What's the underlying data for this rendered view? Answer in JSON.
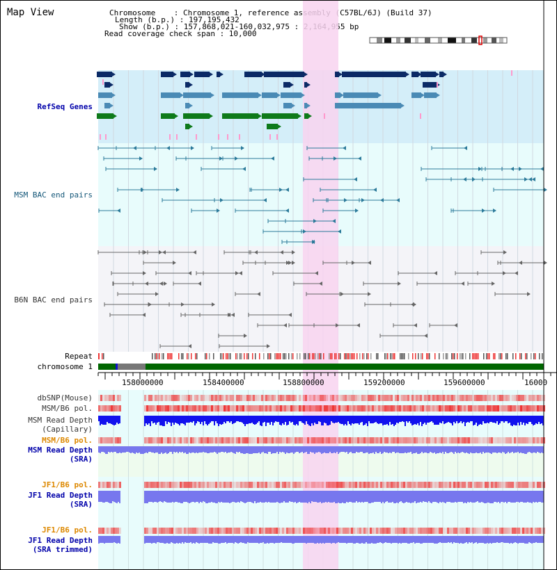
{
  "app": {
    "title": "Map View"
  },
  "info": {
    "chromosome": "Chromosome    : Chromosome 1, reference assembly (C57BL/6J) (Build 37)",
    "length": "Length (b.p.) : 197,195,432",
    "show": "Show (b.p.) : 157,868,021-160,032,975 : 2,164,955 bp",
    "coverage": "Read coverage check span : 10,000"
  },
  "tracks": {
    "refseq": "RefSeq Genes",
    "msm_bac": "MSM BAC end pairs",
    "b6n_bac": "B6N BAC end pairs",
    "repeat": "Repeat",
    "chromosome": "chromosome 1",
    "dbsnp": "dbSNP(Mouse)",
    "msm_b6_pol": "MSM/B6 pol.",
    "msm_depth_cap_1": "MSM Read Depth",
    "msm_depth_cap_2": "(Capillary)",
    "msm_b6_pol_2": "MSM/B6 pol.",
    "msm_depth_sra_1": "MSM Read Depth",
    "msm_depth_sra_2": "(SRA)",
    "jf1_b6_pol": "JF1/B6 pol.",
    "jf1_depth_1": "JF1 Read Depth",
    "jf1_depth_2": "(SRA)",
    "jf1_b6_pol_2": "JF1/B6 pol.",
    "jf1_trim_1": "JF1 Read Depth",
    "jf1_trim_2": "(SRA trimmed)"
  },
  "ruler": {
    "ticks": [
      "158000000",
      "158400000",
      "158800000",
      "159200000",
      "159600000",
      "16000"
    ]
  },
  "colors": {
    "refseq_bg": "#d4eef9",
    "track_bg": "#e8fcfc",
    "highlight": "#f8d4f0",
    "refseq_dark": "#0b2a66",
    "refseq_mid": "#4a8ab5",
    "refseq_green": "#0e7a1a",
    "pink_gene": "#ff99cc",
    "msm_bac": "#2b7a9a",
    "b6n_bac": "#666666",
    "chromosome_bar": "#006600",
    "depth_dark": "#1111ee",
    "depth_light": "#7777ee",
    "pol_red": "#ee3333",
    "accent_orange": "#dd8800",
    "label_blue": "#0000aa"
  },
  "icons": {
    "ideogram": "chromosome-ideogram-icon"
  }
}
